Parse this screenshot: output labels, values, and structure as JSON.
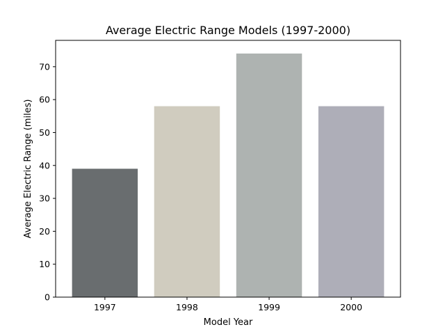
{
  "chart_data": {
    "type": "bar",
    "title": "Average Electric Range Models (1997-2000)",
    "xlabel": "Model Year",
    "ylabel": "Average Electric Range (miles)",
    "categories": [
      "1997",
      "1998",
      "1999",
      "2000"
    ],
    "values": [
      39,
      58,
      74,
      58
    ],
    "colors": [
      "#696d6f",
      "#d0ccbf",
      "#aeb3b1",
      "#aeaeb8"
    ],
    "ylim": [
      0,
      78
    ],
    "yticks": [
      0,
      10,
      20,
      30,
      40,
      50,
      60,
      70
    ],
    "grid": false,
    "legend": "none"
  }
}
